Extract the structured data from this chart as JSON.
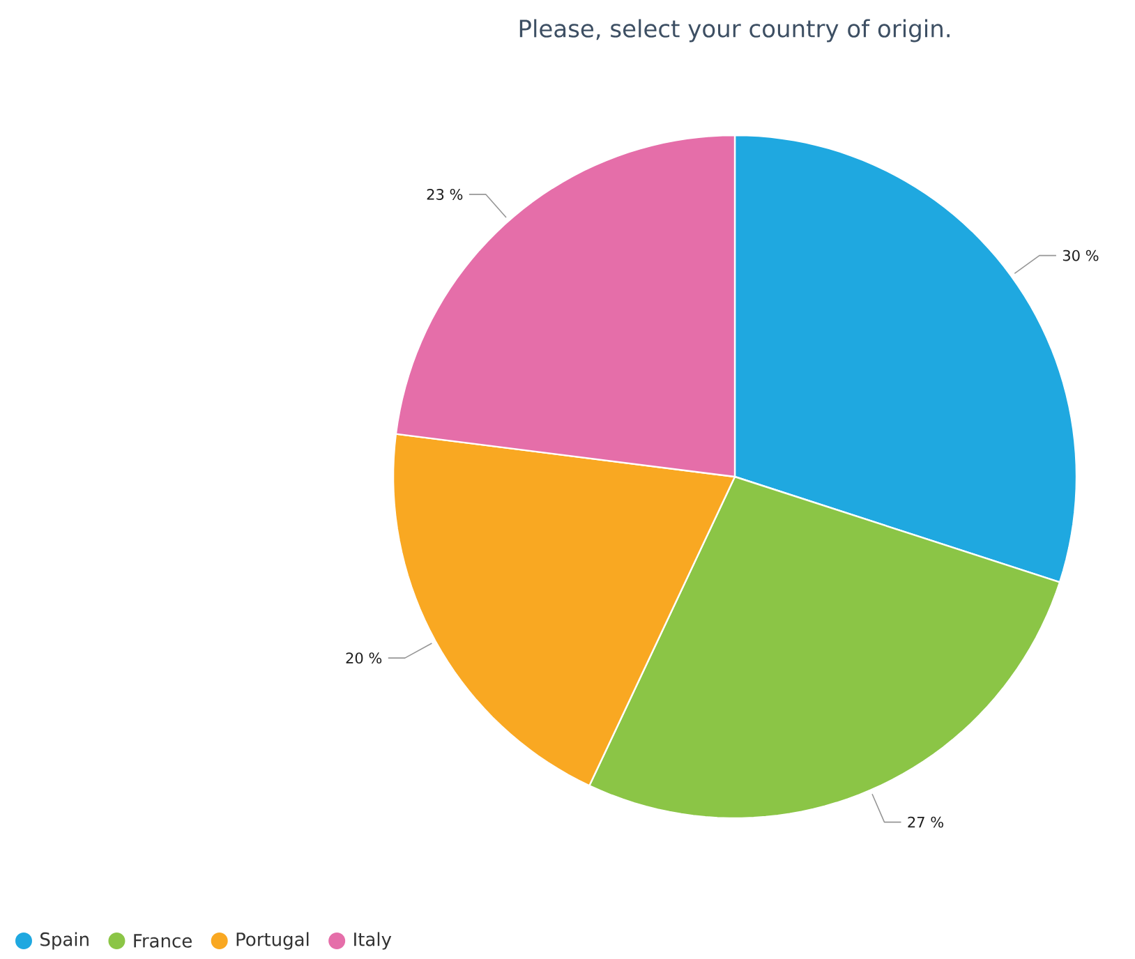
{
  "chart_data": {
    "type": "pie",
    "title": "Please, select your country of origin.",
    "categories": [
      "Spain",
      "France",
      "Portugal",
      "Italy"
    ],
    "values": [
      30,
      27,
      20,
      23
    ],
    "colors": [
      "#1fa8e0",
      "#8bc546",
      "#f9a822",
      "#e56ea9"
    ],
    "value_labels": [
      "30 %",
      "27 %",
      "20 %",
      "23 %"
    ],
    "legend": "bottom left"
  }
}
